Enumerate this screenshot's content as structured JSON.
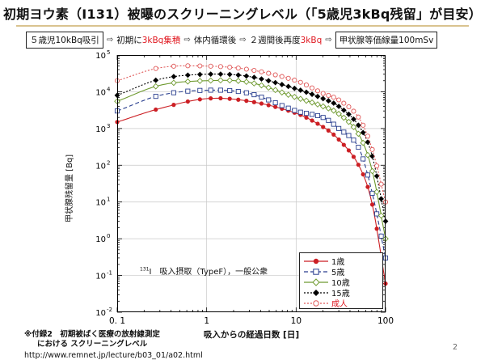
{
  "title": "初期ヨウ素（I131）被曝のスクリーニングレベル（「5歳児3kBq残留」が目安）",
  "flow": {
    "step1": "５歳児10kBq吸引",
    "step2_pre": "初期に",
    "step2_red": "3kBq集積",
    "step3": "体内循環後",
    "step4_pre": "２週間後再度",
    "step4_red": "3kBq",
    "step5": "甲状腺等価線量100mSv",
    "arrow": "⇨"
  },
  "ylabel": "甲状腺残留量 [Bq]",
  "xlabel": "吸入からの経過日数 [日]",
  "annotation": {
    "sup": "131",
    "text": "I　吸入摂取（TypeF），一般公衆"
  },
  "footnote": {
    "line1": "※付録2　初期被ばく医療の放射線測定",
    "line2": "における スクリーニングレベル"
  },
  "url": "http://www.remnet.jp/lecture/b03_01/a02.html",
  "page_number": "2",
  "colors": {
    "1歳": "#cc1f24",
    "5歳": "#2a3f8f",
    "10歳": "#6f9a30",
    "15歳": "#000000",
    "成人": "#e05a5a"
  },
  "chart_data": {
    "type": "scatter",
    "x_scale": "log",
    "y_scale": "log",
    "xlim": [
      0.1,
      100
    ],
    "ylim": [
      0.01,
      100000
    ],
    "xticks": [
      "0. 1",
      "1",
      "10",
      "100"
    ],
    "yticks": [
      "10",
      "10",
      "10",
      "10",
      "10",
      "10",
      "10",
      "10"
    ],
    "yticks_exp": [
      "-2",
      "-1",
      "0",
      "1",
      "2",
      "3",
      "4",
      "5"
    ],
    "legend_position": "bottom-right",
    "series": [
      {
        "name": "1歳",
        "marker": "filled-circle",
        "line": "solid",
        "x": [
          0.1,
          0.3,
          1,
          3,
          10,
          20,
          30,
          50,
          70,
          100
        ],
        "y": [
          1500,
          3500,
          6500,
          5500,
          2600,
          1100,
          500,
          100,
          10,
          0.06
        ]
      },
      {
        "name": "5歳",
        "marker": "open-square",
        "line": "dashed",
        "x": [
          0.1,
          0.3,
          1,
          3,
          10,
          20,
          30,
          50,
          70,
          100
        ],
        "y": [
          3000,
          8000,
          11000,
          9000,
          3000,
          2000,
          1000,
          300,
          20,
          0.3
        ]
      },
      {
        "name": "10歳",
        "marker": "open-diamond",
        "line": "solid",
        "x": [
          0.1,
          0.3,
          1,
          3,
          10,
          20,
          30,
          50,
          70,
          100
        ],
        "y": [
          5500,
          15000,
          20000,
          18000,
          7000,
          4000,
          2500,
          700,
          80,
          1
        ]
      },
      {
        "name": "15歳",
        "marker": "filled-diamond",
        "line": "dotted",
        "x": [
          0.1,
          0.3,
          1,
          3,
          10,
          20,
          30,
          50,
          70,
          100
        ],
        "y": [
          8000,
          22000,
          30000,
          26000,
          12000,
          6500,
          4000,
          1200,
          200,
          3
        ]
      },
      {
        "name": "成人",
        "marker": "open-circle",
        "line": "dotted",
        "x": [
          0.1,
          0.3,
          1,
          3,
          10,
          20,
          30,
          50,
          70,
          100
        ],
        "y": [
          20000,
          45000,
          50000,
          40000,
          20000,
          9000,
          6000,
          2000,
          300,
          10
        ]
      }
    ]
  }
}
